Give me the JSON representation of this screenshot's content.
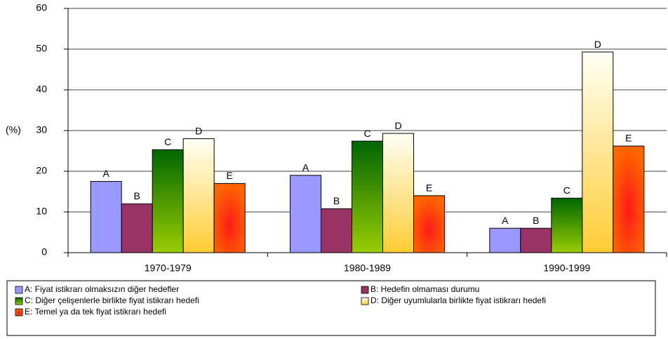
{
  "chart_data": {
    "type": "bar",
    "y_label": "(%)",
    "categories": [
      "1970-1979",
      "1980-1989",
      "1990-1999"
    ],
    "series": [
      {
        "name": "A: Fiyat istikrarı olmaksızın diğer hedefler",
        "bar_label": "A",
        "color": "#9999ff",
        "values": [
          17.5,
          19,
          6
        ]
      },
      {
        "name": "B: Hedefin olmaması durumu",
        "bar_label": "B",
        "color": "#993366",
        "values": [
          12,
          10.8,
          6
        ]
      },
      {
        "name": "C: Diğer çelişenlerle birlikte fiyat istikrarı hedefi",
        "bar_label": "C",
        "color": "#339900",
        "gradient": [
          "#006600",
          "#99cc00"
        ],
        "values": [
          25.3,
          27.4,
          13.4
        ]
      },
      {
        "name": "D: Diğer uyumlularla birlikte fiyat istikrarı hedefi",
        "bar_label": "D",
        "color": "#ffcc66",
        "gradient": [
          "#fffff5",
          "#ffcc33"
        ],
        "values": [
          28,
          29.3,
          49.3
        ]
      },
      {
        "name": "E: Temel ya da tek fiyat istikrarı hedefi",
        "bar_label": "E",
        "color": "#ff4400",
        "radial": [
          "#ff1a1a",
          "#ff6600"
        ],
        "values": [
          17,
          14,
          26.2
        ]
      }
    ],
    "ylim": [
      0,
      60
    ],
    "yticks": [
      0,
      10,
      20,
      30,
      40,
      50,
      60
    ],
    "grid": true,
    "legend": "bottom"
  }
}
